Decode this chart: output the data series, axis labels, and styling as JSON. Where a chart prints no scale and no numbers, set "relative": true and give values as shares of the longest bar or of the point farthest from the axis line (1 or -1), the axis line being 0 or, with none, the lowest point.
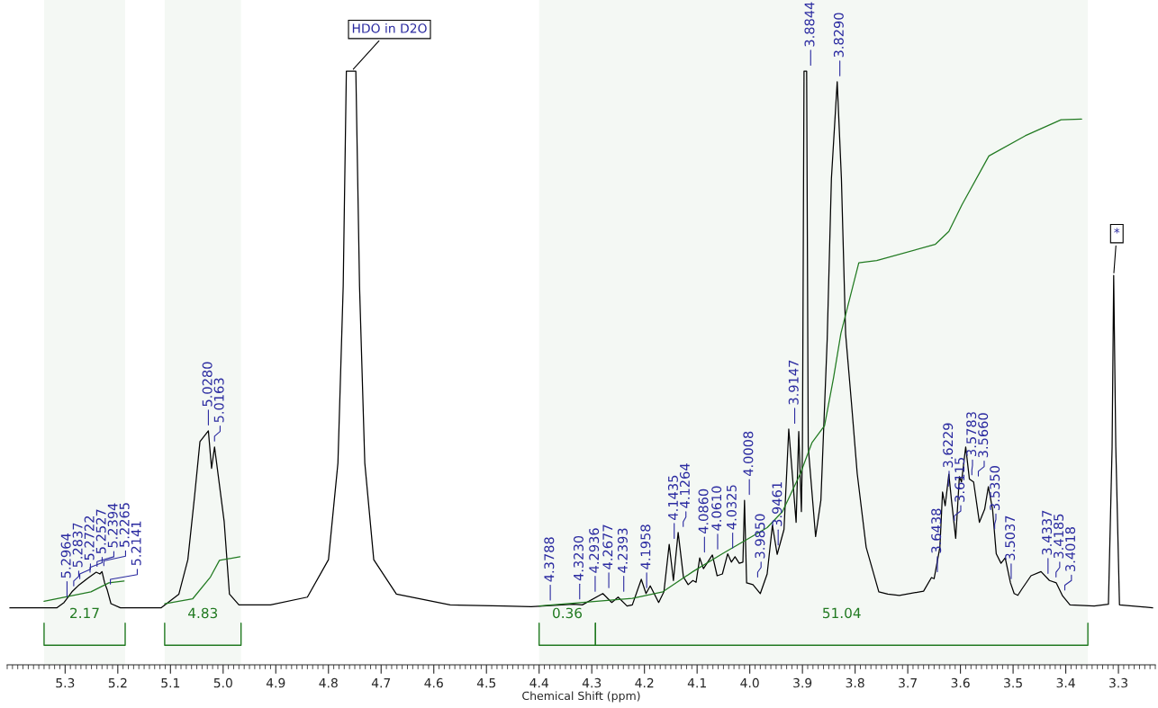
{
  "chart_data": {
    "type": "line",
    "relative": true,
    "xlabel": "Chemical Shift (ppm)",
    "xlim": [
      5.41,
      3.23
    ],
    "xticks": [
      5.3,
      5.2,
      5.1,
      {
        "value": 5.0,
        "label": "5.0"
      },
      4.9,
      4.8,
      4.7,
      4.6,
      4.5,
      4.4,
      4.3,
      4.2,
      4.1,
      {
        "value": 4.0,
        "label": "4.0"
      },
      3.9,
      3.8,
      3.7,
      3.6,
      3.5,
      3.4,
      3.3
    ],
    "grid": false,
    "legend": false,
    "tick_labels": "x",
    "series": [
      {
        "color": "#000000",
        "x": [
          5.405,
          5.316,
          5.302,
          5.287,
          5.273,
          5.257,
          5.241,
          5.234,
          5.23,
          5.225,
          5.22,
          5.213,
          5.195,
          5.118,
          5.084,
          5.067,
          5.054,
          5.044,
          5.028,
          5.022,
          5.0163,
          4.998,
          4.988,
          4.97,
          4.91,
          4.84,
          4.8,
          4.782,
          4.772,
          4.766,
          4.756,
          4.748,
          4.741,
          4.731,
          4.714,
          4.671,
          4.569,
          4.467,
          4.415,
          4.393,
          4.335,
          4.318,
          4.279,
          4.262,
          4.25,
          4.233,
          4.223,
          4.206,
          4.197,
          4.189,
          4.173,
          4.163,
          4.153,
          4.145,
          4.136,
          4.126,
          4.117,
          4.108,
          4.102,
          4.095,
          4.088,
          4.071,
          4.062,
          4.052,
          4.042,
          4.035,
          4.028,
          4.02,
          4.013,
          4.01,
          4.006,
          3.994,
          3.98,
          3.967,
          3.957,
          3.948,
          3.935,
          3.926,
          3.912,
          3.907,
          3.902,
          3.9,
          3.897,
          3.892,
          3.889,
          3.875,
          3.865,
          3.853,
          3.845,
          3.834,
          3.826,
          3.818,
          3.807,
          3.796,
          3.779,
          3.755,
          3.738,
          3.716,
          3.67,
          3.655,
          3.65,
          3.639,
          3.634,
          3.629,
          3.622,
          3.617,
          3.609,
          3.602,
          3.598,
          3.59,
          3.583,
          3.575,
          3.564,
          3.554,
          3.547,
          3.539,
          3.532,
          3.523,
          3.515,
          3.505,
          3.498,
          3.491,
          3.483,
          3.466,
          3.447,
          3.431,
          3.418,
          3.406,
          3.392,
          3.346,
          3.319,
          3.312,
          3.309,
          3.305,
          3.298,
          3.235
        ],
        "values": [
          0.096,
          0.096,
          0.105,
          0.123,
          0.135,
          0.146,
          0.156,
          0.153,
          0.157,
          0.138,
          0.126,
          0.103,
          0.096,
          0.096,
          0.119,
          0.177,
          0.286,
          0.376,
          0.394,
          0.331,
          0.367,
          0.241,
          0.119,
          0.101,
          0.101,
          0.114,
          0.177,
          0.34,
          0.638,
          1.0,
          1.0,
          1.0,
          0.638,
          0.34,
          0.177,
          0.119,
          0.101,
          0.099,
          0.098,
          0.099,
          0.102,
          0.101,
          0.12,
          0.105,
          0.114,
          0.099,
          0.101,
          0.144,
          0.12,
          0.133,
          0.105,
          0.123,
          0.203,
          0.142,
          0.223,
          0.148,
          0.135,
          0.142,
          0.139,
          0.18,
          0.162,
          0.185,
          0.15,
          0.153,
          0.187,
          0.173,
          0.182,
          0.171,
          0.173,
          0.277,
          0.138,
          0.135,
          0.12,
          0.153,
          0.235,
          0.186,
          0.228,
          0.397,
          0.24,
          0.393,
          0.258,
          0.367,
          1.0,
          1.0,
          0.367,
          0.216,
          0.277,
          0.548,
          0.819,
          0.982,
          0.819,
          0.557,
          0.442,
          0.322,
          0.198,
          0.123,
          0.119,
          0.117,
          0.124,
          0.147,
          0.145,
          0.198,
          0.291,
          0.268,
          0.321,
          0.277,
          0.213,
          0.317,
          0.308,
          0.367,
          0.313,
          0.308,
          0.24,
          0.262,
          0.3,
          0.262,
          0.187,
          0.171,
          0.18,
          0.138,
          0.12,
          0.117,
          0.128,
          0.15,
          0.157,
          0.142,
          0.138,
          0.116,
          0.101,
          0.099,
          0.102,
          0.367,
          0.656,
          0.367,
          0.101,
          0.096
        ]
      },
      {
        "color": "#217a21",
        "x": [
          5.34,
          5.251,
          5.217,
          5.188
        ],
        "values": [
          0.107,
          0.123,
          0.138,
          0.141
        ]
      },
      {
        "color": "#217a21",
        "x": [
          5.111,
          5.058,
          5.024,
          5.007,
          4.968
        ],
        "values": [
          0.103,
          0.111,
          0.148,
          0.176,
          0.182
        ]
      },
      {
        "color": "#217a21",
        "x": [
          4.4,
          4.223,
          4.165,
          4.108,
          4.052,
          3.994,
          3.967,
          3.938,
          3.904,
          3.882,
          3.858,
          3.841,
          3.827,
          3.793,
          3.759,
          3.648,
          3.622,
          3.597,
          3.546,
          3.477,
          3.409,
          3.37
        ],
        "values": [
          0.099,
          0.112,
          0.123,
          0.157,
          0.187,
          0.217,
          0.231,
          0.258,
          0.322,
          0.374,
          0.403,
          0.483,
          0.558,
          0.677,
          0.681,
          0.708,
          0.73,
          0.775,
          0.857,
          0.891,
          0.918,
          0.919
        ]
      }
    ],
    "bands": [
      {
        "axis": "x",
        "from": 5.34,
        "to": 5.186,
        "label": "2.17",
        "color": "#217a21"
      },
      {
        "axis": "x",
        "from": 5.111,
        "to": 4.966,
        "label": "4.83",
        "color": "#217a21"
      },
      {
        "axis": "x",
        "from": 4.4,
        "to": 4.293,
        "label": "0.36",
        "color": "#217a21"
      },
      {
        "axis": "x",
        "from": 4.293,
        "to": 3.358,
        "label": "51.04",
        "color": "#217a21"
      }
    ],
    "annotations": [
      {
        "text": "5.2964",
        "x": 5.2964,
        "y": 0.105
      },
      {
        "text": "5.2837",
        "x": 5.2837,
        "y": 0.123
      },
      {
        "text": "5.2722",
        "x": 5.2722,
        "y": 0.135
      },
      {
        "text": "5.2527",
        "x": 5.2527,
        "y": 0.146
      },
      {
        "text": "5.2394",
        "x": 5.2394,
        "y": 0.156
      },
      {
        "text": "5.2265",
        "x": 5.2265,
        "y": 0.157
      },
      {
        "text": "5.2141",
        "x": 5.2141,
        "y": 0.126
      },
      {
        "text": "5.0280",
        "x": 5.028,
        "y": 0.394
      },
      {
        "text": "5.0163",
        "x": 5.0163,
        "y": 0.367
      },
      {
        "text": "4.3788",
        "x": 4.3788,
        "y": 0.099
      },
      {
        "text": "4.3230",
        "x": 4.323,
        "y": 0.101
      },
      {
        "text": "4.2936",
        "x": 4.2936,
        "y": 0.114
      },
      {
        "text": "4.2677",
        "x": 4.2677,
        "y": 0.12
      },
      {
        "text": "4.2393",
        "x": 4.2393,
        "y": 0.114
      },
      {
        "text": "4.1958",
        "x": 4.1958,
        "y": 0.12
      },
      {
        "text": "4.1435",
        "x": 4.1435,
        "y": 0.203
      },
      {
        "text": "4.1264",
        "x": 4.1264,
        "y": 0.223
      },
      {
        "text": "4.0860",
        "x": 4.086,
        "y": 0.18
      },
      {
        "text": "4.0610",
        "x": 4.061,
        "y": 0.185
      },
      {
        "text": "4.0325",
        "x": 4.0325,
        "y": 0.187
      },
      {
        "text": "4.0008",
        "x": 4.0008,
        "y": 0.277
      },
      {
        "text": "3.9850",
        "x": 3.985,
        "y": 0.138
      },
      {
        "text": "3.9461",
        "x": 3.9461,
        "y": 0.192
      },
      {
        "text": "3.9147",
        "x": 3.9147,
        "y": 0.397
      },
      {
        "text": "3.8844",
        "x": 3.8844,
        "y": 1.0
      },
      {
        "text": "3.8290",
        "x": 3.829,
        "y": 0.982
      },
      {
        "text": "3.6438",
        "x": 3.6438,
        "y": 0.147
      },
      {
        "text": "3.6229",
        "x": 3.6229,
        "y": 0.291
      },
      {
        "text": "3.6115",
        "x": 3.6115,
        "y": 0.233
      },
      {
        "text": "3.5783",
        "x": 3.5783,
        "y": 0.31
      },
      {
        "text": "3.5660",
        "x": 3.566,
        "y": 0.308
      },
      {
        "text": "3.5350",
        "x": 3.535,
        "y": 0.219
      },
      {
        "text": "3.5037",
        "x": 3.5037,
        "y": 0.135
      },
      {
        "text": "3.4337",
        "x": 3.4337,
        "y": 0.144
      },
      {
        "text": "3.4185",
        "x": 3.4185,
        "y": 0.138
      },
      {
        "text": "3.4018",
        "x": 3.4018,
        "y": 0.116
      },
      {
        "text": "HDO in D2O",
        "x": 4.756,
        "y": 1.0
      },
      {
        "text": "*",
        "x": 3.309,
        "y": 0.656
      }
    ]
  }
}
